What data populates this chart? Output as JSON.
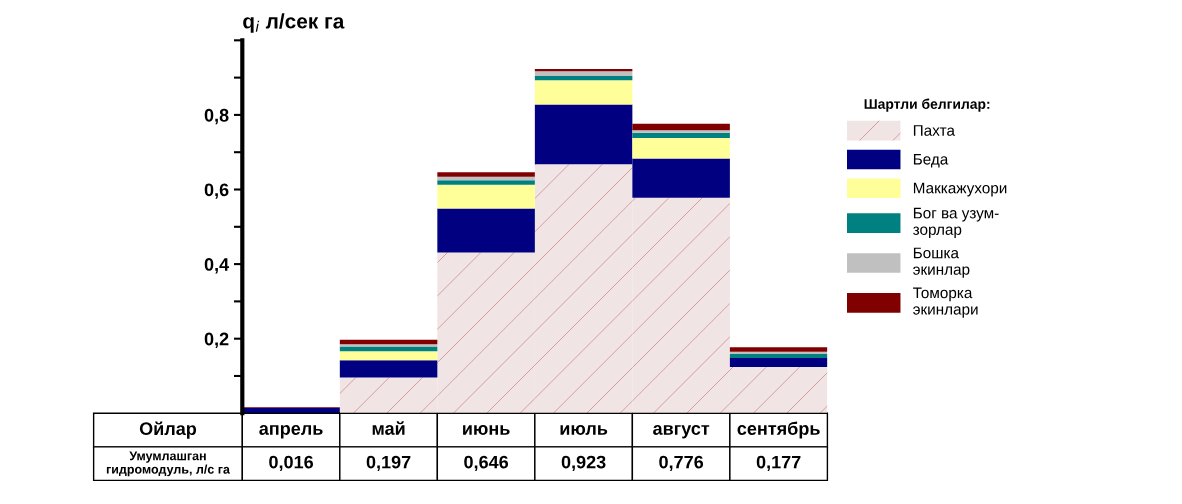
{
  "chart_data": {
    "type": "bar",
    "stacked": true,
    "ylabel": "q$_{i}$ л/сек га",
    "legend_title": "Шартли белгилар:",
    "legend": "right",
    "categories": [
      "апрель",
      "май",
      "июнь",
      "июль",
      "август",
      "сентябрь"
    ],
    "series": [
      {
        "name": "Пахта",
        "color": "#f0e4e4",
        "values": [
          null,
          0.096,
          0.431,
          0.668,
          0.578,
          0.124
        ]
      },
      {
        "name": "Беда",
        "color": "#000080",
        "values": [
          0.014,
          0.046,
          0.118,
          0.16,
          0.105,
          0.024
        ]
      },
      {
        "name": "Маккажухори",
        "color": "#ffff99",
        "values": [
          null,
          0.024,
          0.064,
          0.065,
          0.055,
          null
        ]
      },
      {
        "name": "Бог ва узум-\nзорлар",
        "color": "#008080",
        "values": [
          null,
          0.013,
          0.012,
          0.011,
          0.014,
          0.011
        ]
      },
      {
        "name": "Бошка\nэкинлар",
        "color": "#c0c0c0",
        "values": [
          null,
          0.006,
          0.009,
          0.013,
          0.007,
          0.006
        ]
      },
      {
        "name": "Томорка\nэкинлари",
        "color": "#800000",
        "values": [
          0.002,
          0.012,
          0.012,
          0.006,
          0.017,
          0.012
        ]
      }
    ],
    "totals": [
      "0,016",
      "0,197",
      "0,646",
      "0,923",
      "0,776",
      "0,177"
    ],
    "annotations": [
      "Ойлар",
      "Умумлашган\nгидромодуль, л/с га"
    ],
    "ylim": [
      0,
      1.0
    ],
    "yticks": [
      {
        "value": 0.1,
        "label": null
      },
      {
        "value": 0.2,
        "label": "0,2"
      },
      {
        "value": 0.3,
        "label": null
      },
      {
        "value": 0.4,
        "label": "0,4"
      },
      {
        "value": 0.5,
        "label": null
      },
      {
        "value": 0.6,
        "label": "0,6"
      },
      {
        "value": 0.7,
        "label": null
      },
      {
        "value": 0.8,
        "label": "0,8"
      },
      {
        "value": 0.9,
        "label": null
      },
      {
        "value": 1.0,
        "label": null
      }
    ],
    "grid": false
  }
}
